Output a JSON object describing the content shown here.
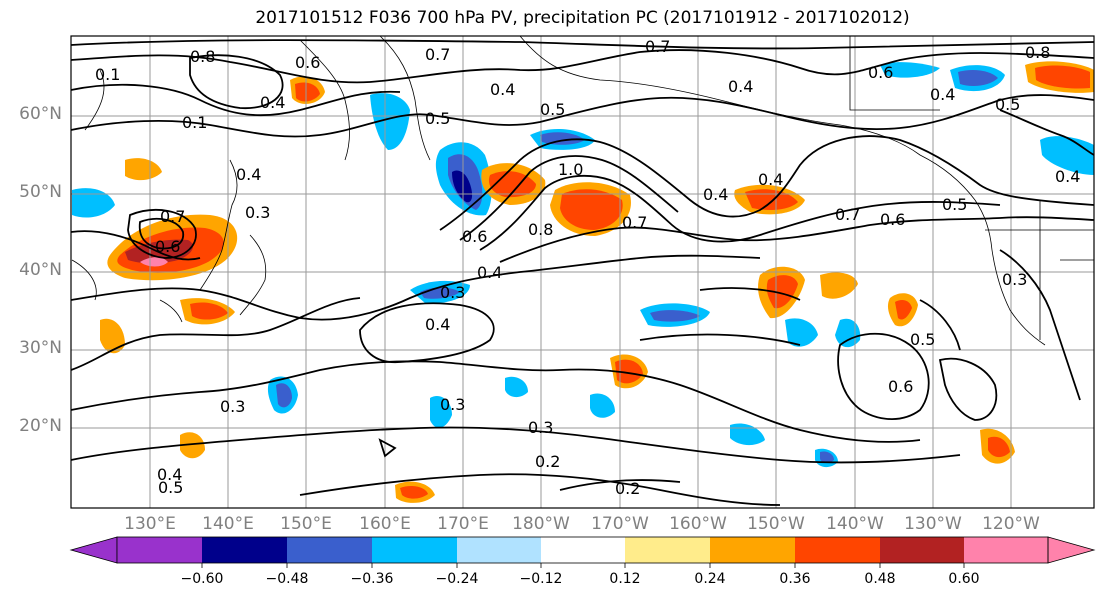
{
  "title": "2017101512 F036 700 hPa PV, precipitation PC (2017101912 - 2017102012)",
  "latitude_labels": [
    "60°N",
    "50°N",
    "40°N",
    "30°N",
    "20°N"
  ],
  "longitude_labels": [
    "130°E",
    "140°E",
    "150°E",
    "160°E",
    "170°E",
    "180°W",
    "170°W",
    "160°W",
    "150°W",
    "140°W",
    "130°W",
    "120°W"
  ],
  "colorbar": {
    "ticks": [
      "−0.60",
      "−0.48",
      "−0.36",
      "−0.24",
      "−0.12",
      "0.12",
      "0.24",
      "0.36",
      "0.48",
      "0.60"
    ],
    "colors": [
      "#9932cc",
      "#00008b",
      "#3a5fcd",
      "#00bfff",
      "#b0e2ff",
      "#ffffff",
      "#ffec8b",
      "#ffa500",
      "#ff4500",
      "#b22222",
      "#ff82ab"
    ]
  },
  "contour_labels": [
    "0.8",
    "0.6",
    "0.7",
    "0.4",
    "0.1",
    "0.5",
    "0.4",
    "0.7",
    "0.4",
    "0.6",
    "0.8",
    "0.4",
    "0.5",
    "0.1",
    "0.4",
    "0.3",
    "0.5",
    "0.4",
    "0.7",
    "0.6",
    "1.0",
    "0.8",
    "0.6",
    "0.7",
    "0.4",
    "0.4",
    "0.7",
    "0.6",
    "0.5",
    "0.3",
    "0.4",
    "0.4",
    "0.3",
    "0.5",
    "0.3",
    "0.3",
    "0.3",
    "0.2",
    "0.6",
    "0.2",
    "0.4",
    "0.5"
  ]
}
